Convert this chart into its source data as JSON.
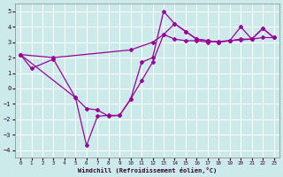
{
  "xlabel": "Windchill (Refroidissement éolien,°C)",
  "bg_color": "#cceaea",
  "line_color": "#990099",
  "grid_color": "#ffffff",
  "xlim": [
    -0.5,
    23.5
  ],
  "ylim": [
    -4.5,
    5.5
  ],
  "yticks": [
    -4,
    -3,
    -2,
    -1,
    0,
    1,
    2,
    3,
    4,
    5
  ],
  "xticks": [
    0,
    1,
    2,
    3,
    4,
    5,
    6,
    7,
    8,
    9,
    10,
    11,
    12,
    13,
    14,
    15,
    16,
    17,
    18,
    19,
    20,
    21,
    22,
    23
  ],
  "line1_x": [
    0,
    3,
    10,
    12,
    13,
    14,
    15,
    16,
    17,
    18,
    19,
    20,
    21,
    22,
    23
  ],
  "line1_y": [
    2.2,
    2.0,
    2.5,
    3.0,
    3.5,
    3.2,
    3.1,
    3.1,
    3.0,
    3.05,
    3.1,
    3.15,
    3.2,
    3.3,
    3.3
  ],
  "line2_x": [
    0,
    1,
    3,
    5,
    6,
    7,
    8,
    9,
    10,
    11,
    12,
    13,
    14,
    15,
    16,
    17,
    18,
    19,
    20,
    21,
    22,
    23
  ],
  "line2_y": [
    2.2,
    1.3,
    1.9,
    -0.6,
    -1.3,
    -1.4,
    -1.8,
    -1.75,
    -0.7,
    0.5,
    1.7,
    3.5,
    4.2,
    3.7,
    3.2,
    3.1,
    3.0,
    3.1,
    4.0,
    3.2,
    3.9,
    3.3
  ],
  "line3_x": [
    0,
    5,
    6,
    7,
    8,
    9,
    10,
    11,
    12,
    13,
    14,
    15,
    16,
    17,
    18,
    19,
    20,
    21,
    22,
    23
  ],
  "line3_y": [
    2.2,
    -0.6,
    -3.7,
    -1.8,
    -1.75,
    -1.75,
    -0.7,
    1.7,
    2.0,
    5.0,
    4.2,
    3.7,
    3.2,
    3.1,
    3.0,
    3.1,
    3.2,
    3.2,
    3.9,
    3.3
  ]
}
